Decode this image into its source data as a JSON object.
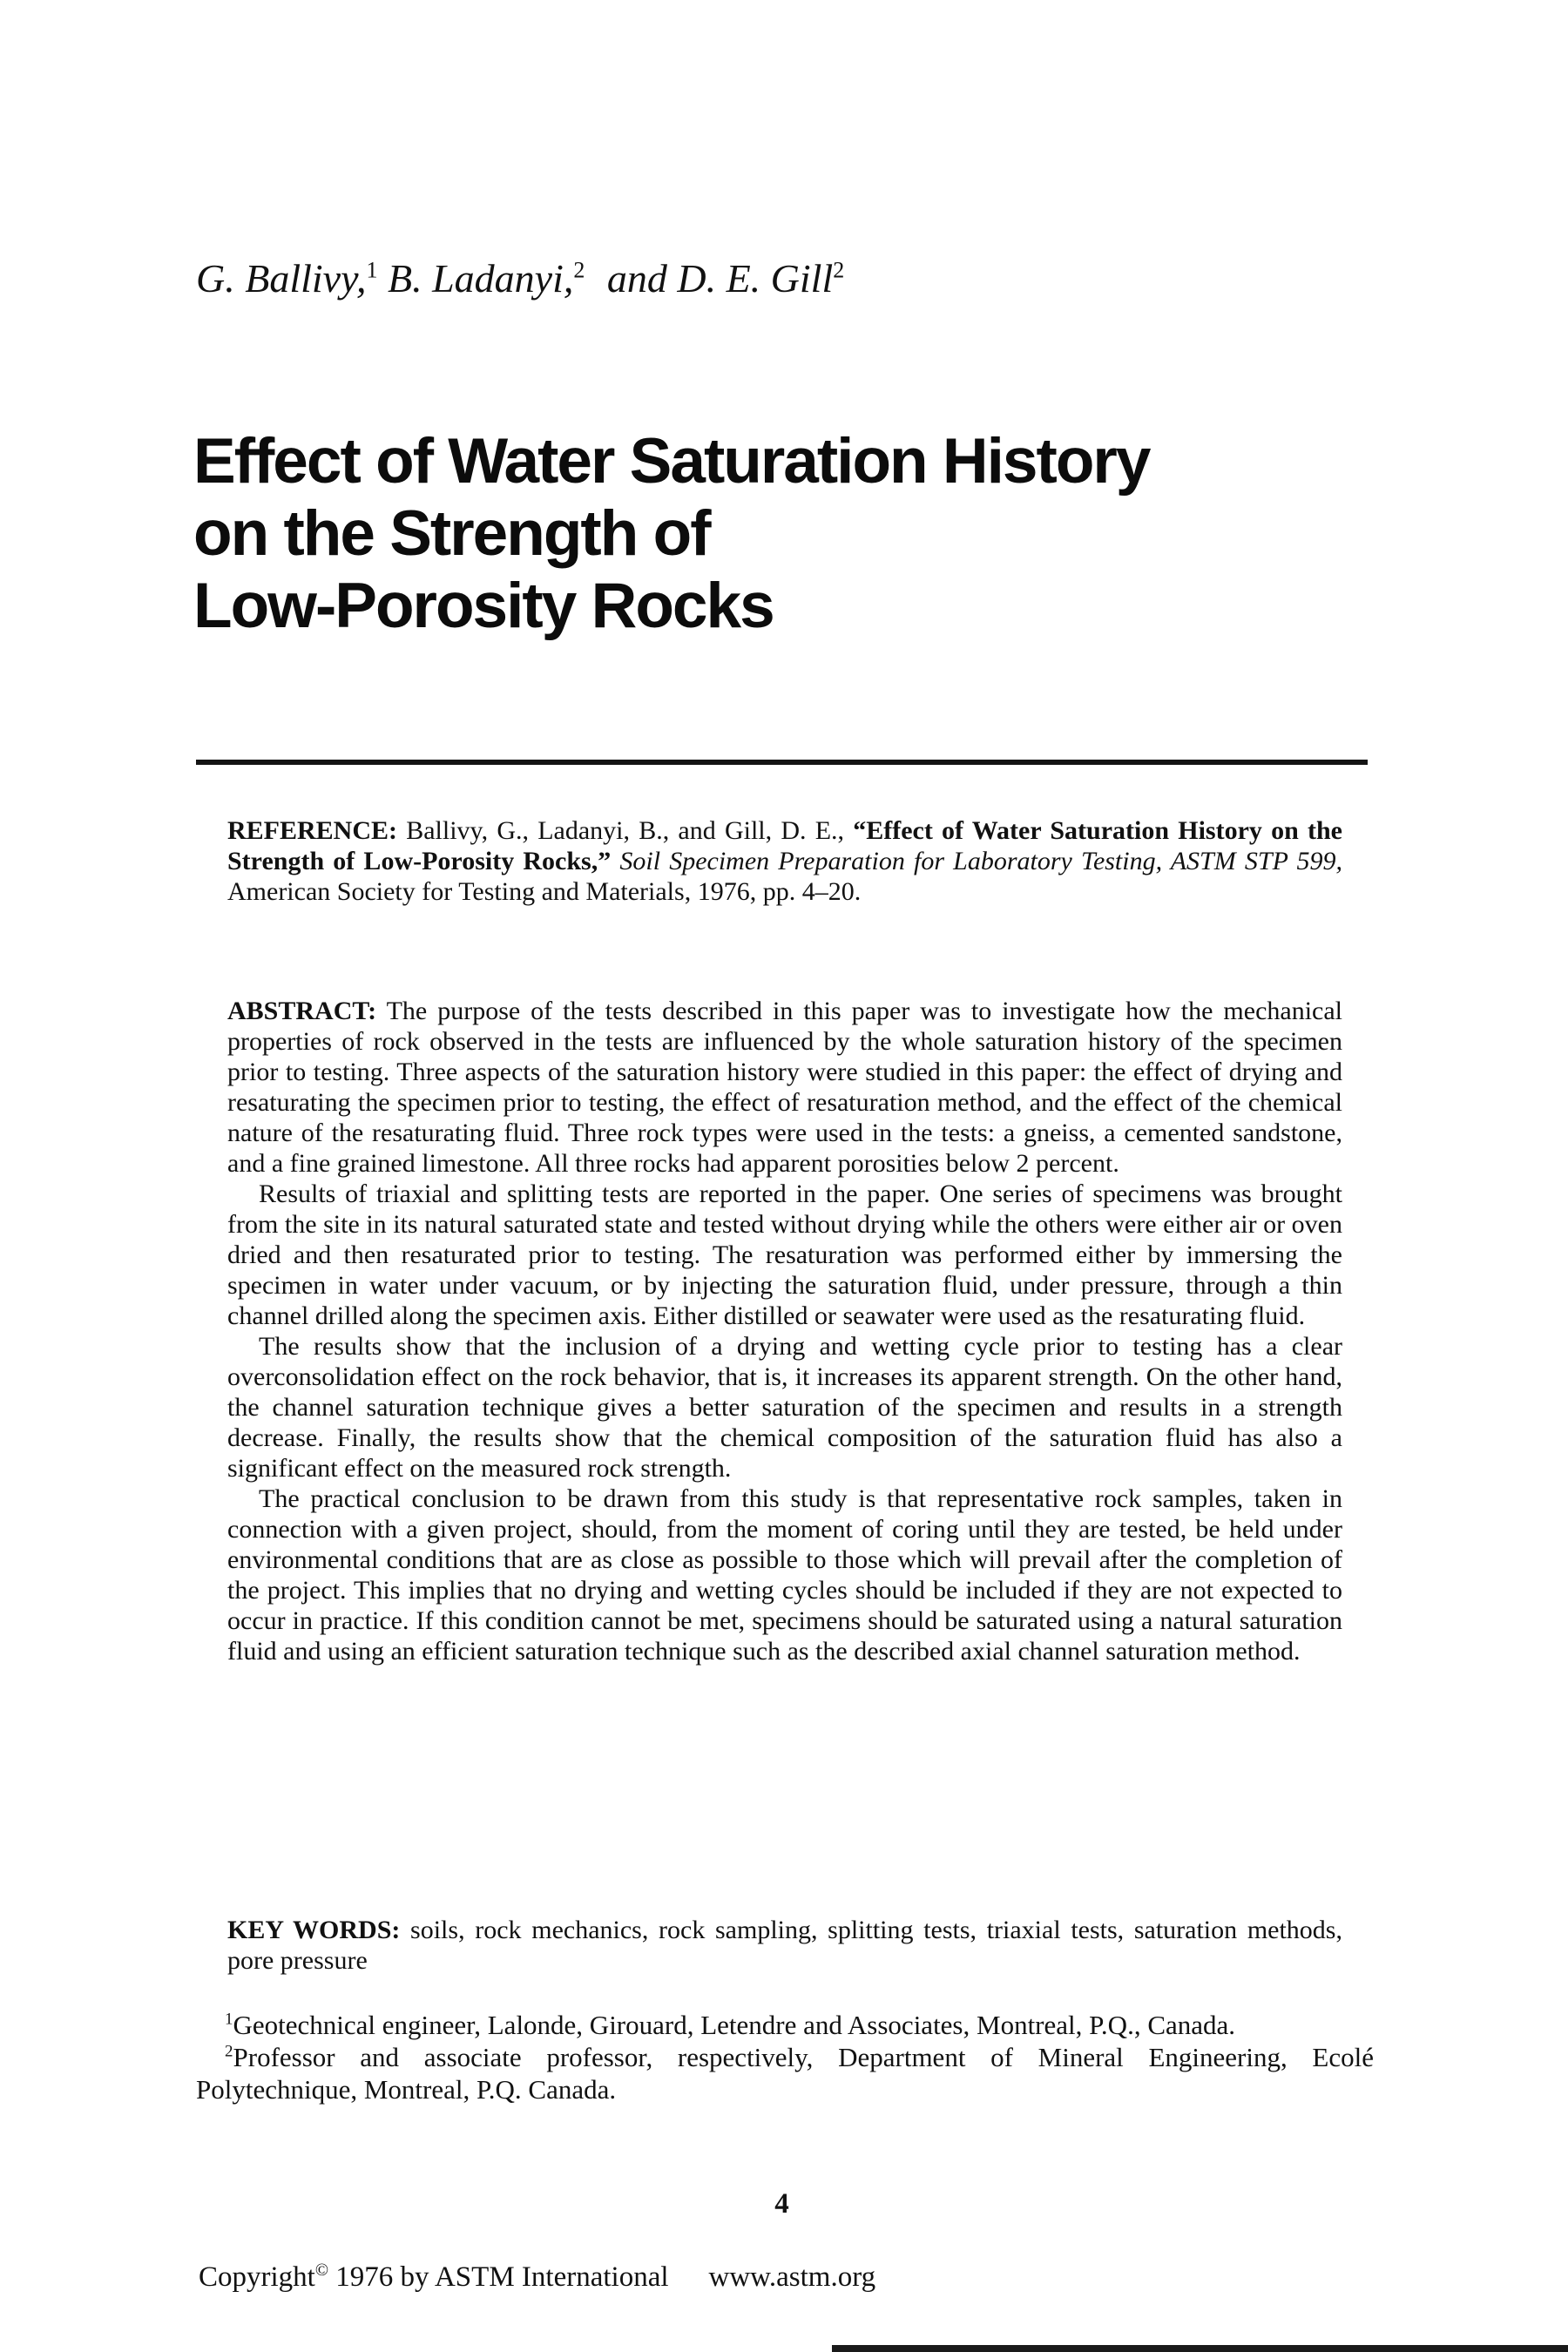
{
  "authors": {
    "a1": "G. Ballivy,",
    "a1_sup": "1",
    "a2": " B. Ladanyi,",
    "a2_sup": "2",
    "a3": " and D. E. Gill",
    "a3_sup": "2"
  },
  "title": {
    "line1": "Effect of Water Saturation History",
    "line2": "on the Strength of",
    "line3": "Low-Porosity Rocks"
  },
  "reference": {
    "label": "REFERENCE:",
    "authors_part": " Ballivy, G., Ladanyi, B., and Gill, D. E., ",
    "title_bold": "“Effect of Water Saturation History on the Strength of Low-Porosity Rocks,”",
    "source_italic": " Soil Specimen Preparation for Laboratory Testing, ASTM STP 599, ",
    "publisher_part": "American Society for Testing and Materials, 1976, pp. 4–20."
  },
  "abstract": {
    "label": "ABSTRACT:",
    "p1": " The purpose of the tests described in this paper was to investigate how the mechanical properties of rock observed in the tests are influenced by the whole saturation history of the specimen prior to testing. Three aspects of the saturation history were studied in this paper: the effect of drying and resaturating the specimen prior to testing, the effect of resaturation method, and the effect of the chemical nature of the resaturating fluid. Three rock types were used in the tests: a gneiss, a cemented sandstone, and a fine grained limestone. All three rocks had apparent porosities below 2 percent.",
    "p2": "Results of triaxial and splitting tests are reported in the paper. One series of specimens was brought from the site in its natural saturated state and tested without drying while the others were either air or oven dried and then resaturated prior to testing. The resaturation was performed either by immersing the specimen in water under vacuum, or by injecting the saturation fluid, under pressure, through a thin channel drilled along the specimen axis. Either distilled or seawater were used as the resaturating fluid.",
    "p3": "The results show that the inclusion of a drying and wetting cycle prior to testing has a clear overconsolidation effect on the rock behavior, that is, it increases its apparent strength. On the other hand, the channel saturation technique gives a better saturation of the specimen and results in a strength decrease. Finally, the results show that the chemical composition of the saturation fluid has also a significant effect on the measured rock strength.",
    "p4": "The practical conclusion to be drawn from this study is that representative rock samples, taken in connection with a given project, should, from the moment of coring until they are tested, be held under environmental conditions that are as close as possible to those which will prevail after the completion of the project. This implies that no drying and wetting cycles should be included if they are not expected to occur in practice. If this condition cannot be met, specimens should be saturated using a natural saturation fluid and using an efficient saturation technique such as the described axial channel saturation method."
  },
  "keywords": {
    "label": "KEY WORDS:",
    "text": " soils, rock mechanics, rock sampling, splitting tests, triaxial tests, saturation methods, pore pressure"
  },
  "footnotes": {
    "f1_sup": "1",
    "f1_text": "Geotechnical engineer, Lalonde, Girouard, Letendre and Associates, Montreal, P.Q., Canada.",
    "f2_sup": "2",
    "f2_text": "Professor and associate professor, respectively, Department of Mineral Engineering, Ecolé Polytechnique, Montreal, P.Q. Canada."
  },
  "footer": {
    "page_number": "4",
    "copyright_word": "Copyright",
    "copyright_symbol": "©",
    "copyright_rest": " 1976 by ASTM International",
    "url": "www.astm.org"
  }
}
